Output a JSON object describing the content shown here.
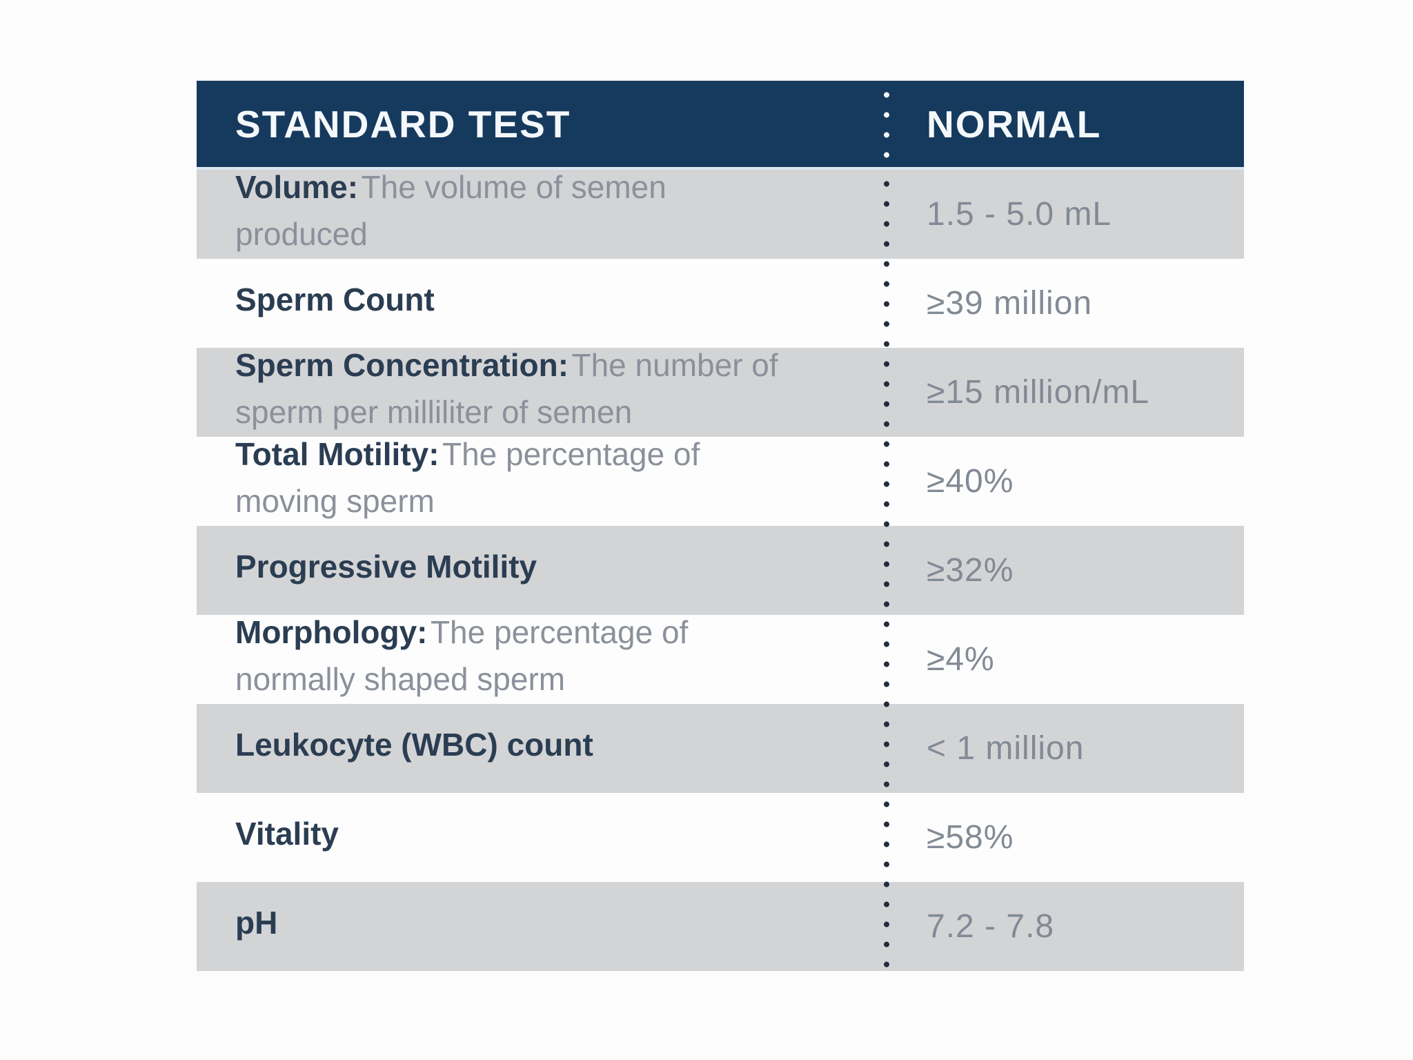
{
  "chart_data": {
    "type": "table",
    "title": "",
    "columns": [
      "STANDARD TEST",
      "NORMAL"
    ],
    "rows": [
      {
        "term": "Volume:",
        "description": "The volume of semen produced",
        "normal": "1.5 - 5.0 mL"
      },
      {
        "term": "Sperm Count",
        "description": "",
        "normal": "≥39 million"
      },
      {
        "term": "Sperm Concentration:",
        "description": "The number of sperm per milliliter of semen",
        "normal": "≥15 million/mL"
      },
      {
        "term": "Total Motility:",
        "description": "The percentage of moving sperm",
        "normal": "≥40%"
      },
      {
        "term": "Progressive Motility",
        "description": "",
        "normal": "≥32%"
      },
      {
        "term": "Morphology:",
        "description": "The percentage of normally shaped sperm",
        "normal": "≥4%"
      },
      {
        "term": "Leukocyte (WBC) count",
        "description": "",
        "normal": "< 1 million"
      },
      {
        "term": "Vitality",
        "description": "",
        "normal": "≥58%"
      },
      {
        "term": "pH",
        "description": "",
        "normal": "7.2 - 7.8"
      }
    ],
    "layout": {
      "row_striping": [
        "gray",
        "white",
        "gray",
        "white",
        "gray",
        "white",
        "gray",
        "white",
        "gray"
      ],
      "column_divider": "vertical dotted line, white dots over header, dark dots over body"
    }
  },
  "colors": {
    "header_bg": "#163a5e",
    "header_text": "#f5f8fb",
    "row_gray_bg": "#d3d4d6",
    "row_white_bg": "#fdfdfd",
    "term_text": "#2b3d52",
    "description_text": "#8b919b",
    "value_text": "#828a95",
    "divider_dot_dark": "#222d3d",
    "divider_dot_light": "#f2f6fa"
  }
}
